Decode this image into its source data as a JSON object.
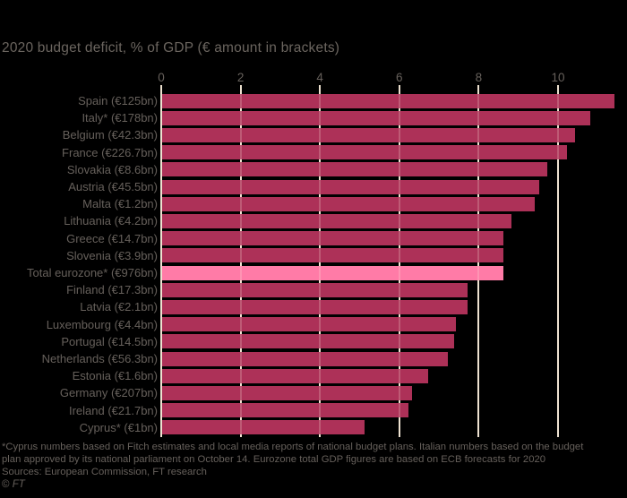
{
  "title": "2020 budget deficit, % of GDP (€ amount in brackets)",
  "chart_data": {
    "type": "bar",
    "orientation": "horizontal",
    "title": "2020 budget deficit, % of GDP (€ amount in brackets)",
    "xlabel": "% of GDP",
    "xlim": [
      0,
      11.7
    ],
    "xticks": [
      0,
      2,
      4,
      6,
      8,
      10
    ],
    "grid": true,
    "legend": "none",
    "categories": [
      "Spain (€125bn)",
      "Italy* (€178bn)",
      "Belgium (€42.3bn)",
      "France (€226.7bn)",
      "Slovakia (€8.6bn)",
      "Austria (€45.5bn)",
      "Malta (€1.2bn)",
      "Lithuania (€4.2bn)",
      "Greece (€14.7bn)",
      "Slovenia (€3.9bn)",
      "Total eurozone* (€976bn)",
      "Finland (€17.3bn)",
      "Latvia (€2.1bn)",
      "Luxembourg (€4.4bn)",
      "Portugal (€14.5bn)",
      "Netherlands (€56.3bn)",
      "Estonia (€1.6bn)",
      "Germany (€207bn)",
      "Ireland (€21.7bn)",
      "Cyprus* (€1bn)"
    ],
    "values": [
      11.4,
      10.8,
      10.4,
      10.2,
      9.7,
      9.5,
      9.4,
      8.8,
      8.6,
      8.6,
      8.6,
      7.7,
      7.7,
      7.4,
      7.35,
      7.2,
      6.7,
      6.3,
      6.2,
      5.1
    ],
    "highlight_index": 10,
    "highlight_label": "Total eurozone* (€976bn)"
  },
  "colors": {
    "background": "#000000",
    "bar": "#AD3158",
    "highlight_bar": "#FF7BA7",
    "gridline": "#EBDFCE",
    "gridline_on_bar": "rgba(250,236,223,0.22)",
    "text": "#66605B"
  },
  "footnote": {
    "line1": "*Cyprus numbers based on Fitch estimates and local media reports of national budget plans. Italian numbers based on the budget",
    "line2": "plan approved by its national parliament on October 14. Eurozone total GDP figures are based on ECB forecasts for 2020",
    "sources": "Sources: European Commission, FT research",
    "credit_symbol": "©",
    "credit_name": "FT"
  }
}
